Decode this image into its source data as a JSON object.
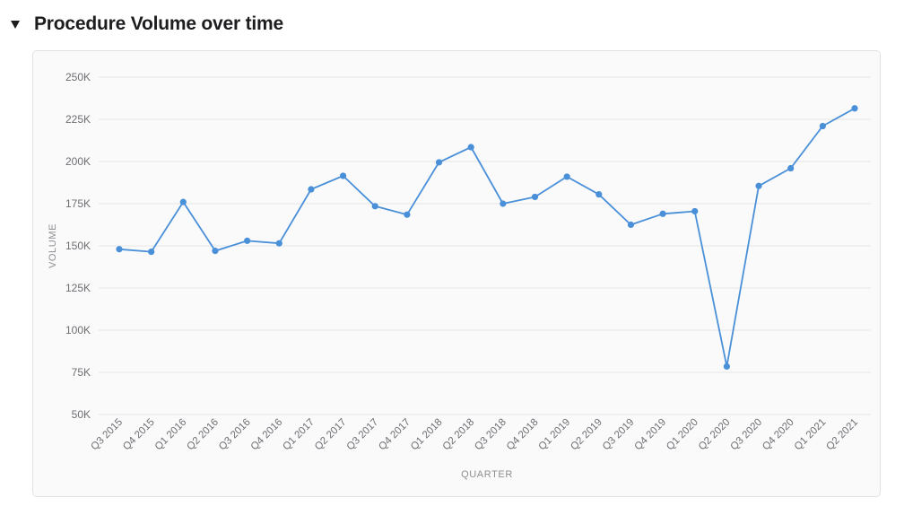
{
  "section": {
    "title": "Procedure Volume over time",
    "toggle_icon": "triangle-down-icon"
  },
  "chart_data": {
    "type": "line",
    "title": "",
    "xlabel": "QUARTER",
    "ylabel": "VOLUME",
    "ylim": [
      50000,
      250000
    ],
    "yticks": [
      {
        "value": 50000,
        "label": "50K"
      },
      {
        "value": 75000,
        "label": "75K"
      },
      {
        "value": 100000,
        "label": "100K"
      },
      {
        "value": 125000,
        "label": "125K"
      },
      {
        "value": 150000,
        "label": "150K"
      },
      {
        "value": 175000,
        "label": "175K"
      },
      {
        "value": 200000,
        "label": "200K"
      },
      {
        "value": 225000,
        "label": "225K"
      },
      {
        "value": 250000,
        "label": "250K"
      }
    ],
    "grid": true,
    "categories": [
      "Q3 2015",
      "Q4 2015",
      "Q1 2016",
      "Q2 2016",
      "Q3 2016",
      "Q4 2016",
      "Q1 2017",
      "Q2 2017",
      "Q3 2017",
      "Q4 2017",
      "Q1 2018",
      "Q2 2018",
      "Q3 2018",
      "Q4 2018",
      "Q1 2019",
      "Q2 2019",
      "Q3 2019",
      "Q4 2019",
      "Q1 2020",
      "Q2 2020",
      "Q3 2020",
      "Q4 2020",
      "Q1 2021",
      "Q2 2021"
    ],
    "series": [
      {
        "color": "#4a90d9",
        "values": [
          148000,
          146500,
          176000,
          147000,
          153000,
          151500,
          183500,
          191500,
          173500,
          168500,
          199500,
          208500,
          175000,
          179000,
          191000,
          180500,
          162500,
          169000,
          170500,
          78500,
          185500,
          196000,
          221000,
          231500
        ]
      }
    ]
  }
}
